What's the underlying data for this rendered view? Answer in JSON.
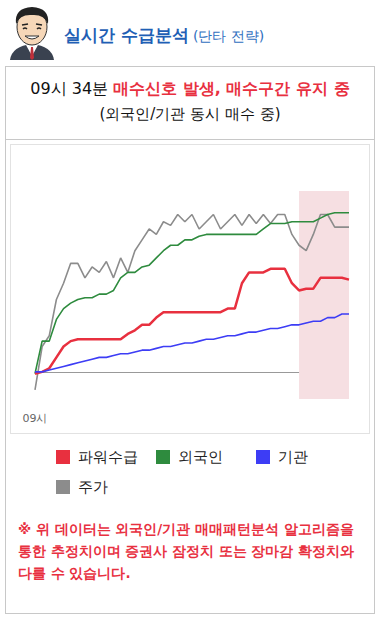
{
  "header": {
    "title": "실시간 수급분석",
    "subtitle": "(단타 전략)"
  },
  "signal": {
    "time": "09시 34분",
    "text": "매수신호 발생, 매수구간 유지 중",
    "detail": "(외국인/기관 동시 매수 중)"
  },
  "chart_data": {
    "type": "line",
    "categories": [
      "09시",
      null,
      null,
      null,
      null,
      null,
      null,
      null,
      null,
      null,
      null,
      null,
      null,
      null,
      null,
      null,
      null,
      null,
      null,
      null,
      null,
      null,
      null,
      null,
      null,
      null,
      null,
      null,
      null,
      null,
      null,
      null,
      null,
      null,
      null,
      null,
      null,
      null,
      null,
      null,
      null,
      null,
      null,
      null,
      null
    ],
    "series": [
      {
        "name": "파워수급",
        "color": "#e8303f",
        "values": [
          -1,
          0,
          2,
          8,
          14,
          17,
          18,
          18,
          18,
          18,
          18,
          18,
          18,
          21,
          23,
          26,
          26,
          30,
          33,
          33,
          33,
          33,
          33,
          33,
          33,
          33,
          33,
          35,
          35,
          49,
          55,
          55,
          55,
          57,
          57,
          57,
          49,
          45,
          46,
          46,
          52,
          52,
          52,
          52,
          51
        ]
      },
      {
        "name": "외국인",
        "color": "#2e8b3e",
        "values": [
          -1,
          17,
          17,
          29,
          35,
          38,
          40,
          41,
          41,
          43,
          43,
          45,
          52,
          55,
          55,
          58,
          59,
          63,
          67,
          70,
          70,
          73,
          73,
          75,
          76,
          76,
          76,
          76,
          76,
          76,
          76,
          76,
          79,
          82,
          82,
          82,
          83,
          83,
          83,
          83,
          85,
          87,
          88,
          88,
          88
        ]
      },
      {
        "name": "기관",
        "color": "#3d3df5",
        "values": [
          0,
          0,
          1,
          2,
          3,
          4,
          5,
          6,
          7,
          8,
          8,
          9,
          10,
          10,
          11,
          12,
          12,
          13,
          14,
          14,
          15,
          16,
          16,
          17,
          18,
          18,
          19,
          20,
          20,
          21,
          22,
          22,
          23,
          24,
          24,
          25,
          26,
          26,
          27,
          28,
          28,
          30,
          30,
          32,
          32
        ]
      },
      {
        "name": "주가",
        "color": "#8c8c8c",
        "values": [
          -10,
          14,
          20,
          40,
          49,
          60,
          60,
          52,
          58,
          55,
          61,
          52,
          63,
          55,
          67,
          73,
          79,
          76,
          83,
          81,
          87,
          83,
          87,
          79,
          83,
          87,
          79,
          83,
          87,
          81,
          87,
          82,
          87,
          82,
          87,
          87,
          76,
          70,
          67,
          76,
          87,
          87,
          80,
          80,
          80
        ]
      }
    ],
    "buy_zone": [
      37,
      44
    ],
    "buy_zone_color": "#f6dfe2",
    "ylim": [
      -15,
      100
    ],
    "yticks": [
      0
    ],
    "grid": true,
    "tick_labels": "x"
  },
  "note": "※ 위 데이터는 외국인/기관 매매패턴분석 알고리즘을 통한 추정치이며 증권사 잠정치 또는 장마감 확정치와 다를 수 있습니다."
}
